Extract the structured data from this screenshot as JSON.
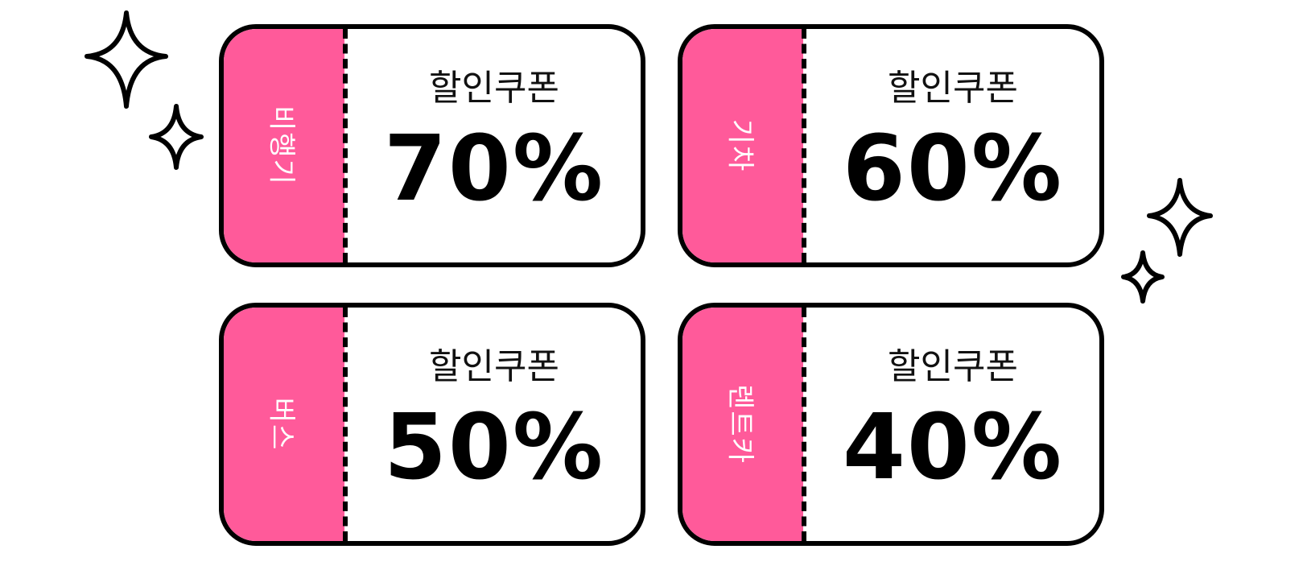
{
  "colors": {
    "accent": "#ff5a9a",
    "outline": "#000000",
    "background": "#ffffff"
  },
  "coupons": [
    {
      "category": "비행기",
      "label": "할인쿠폰",
      "discount": "70%"
    },
    {
      "category": "기차",
      "label": "할인쿠폰",
      "discount": "60%"
    },
    {
      "category": "버스",
      "label": "할인쿠폰",
      "discount": "50%"
    },
    {
      "category": "렌트카",
      "label": "할인쿠폰",
      "discount": "40%"
    }
  ],
  "decorations": {
    "icon": "sparkle-icon"
  }
}
